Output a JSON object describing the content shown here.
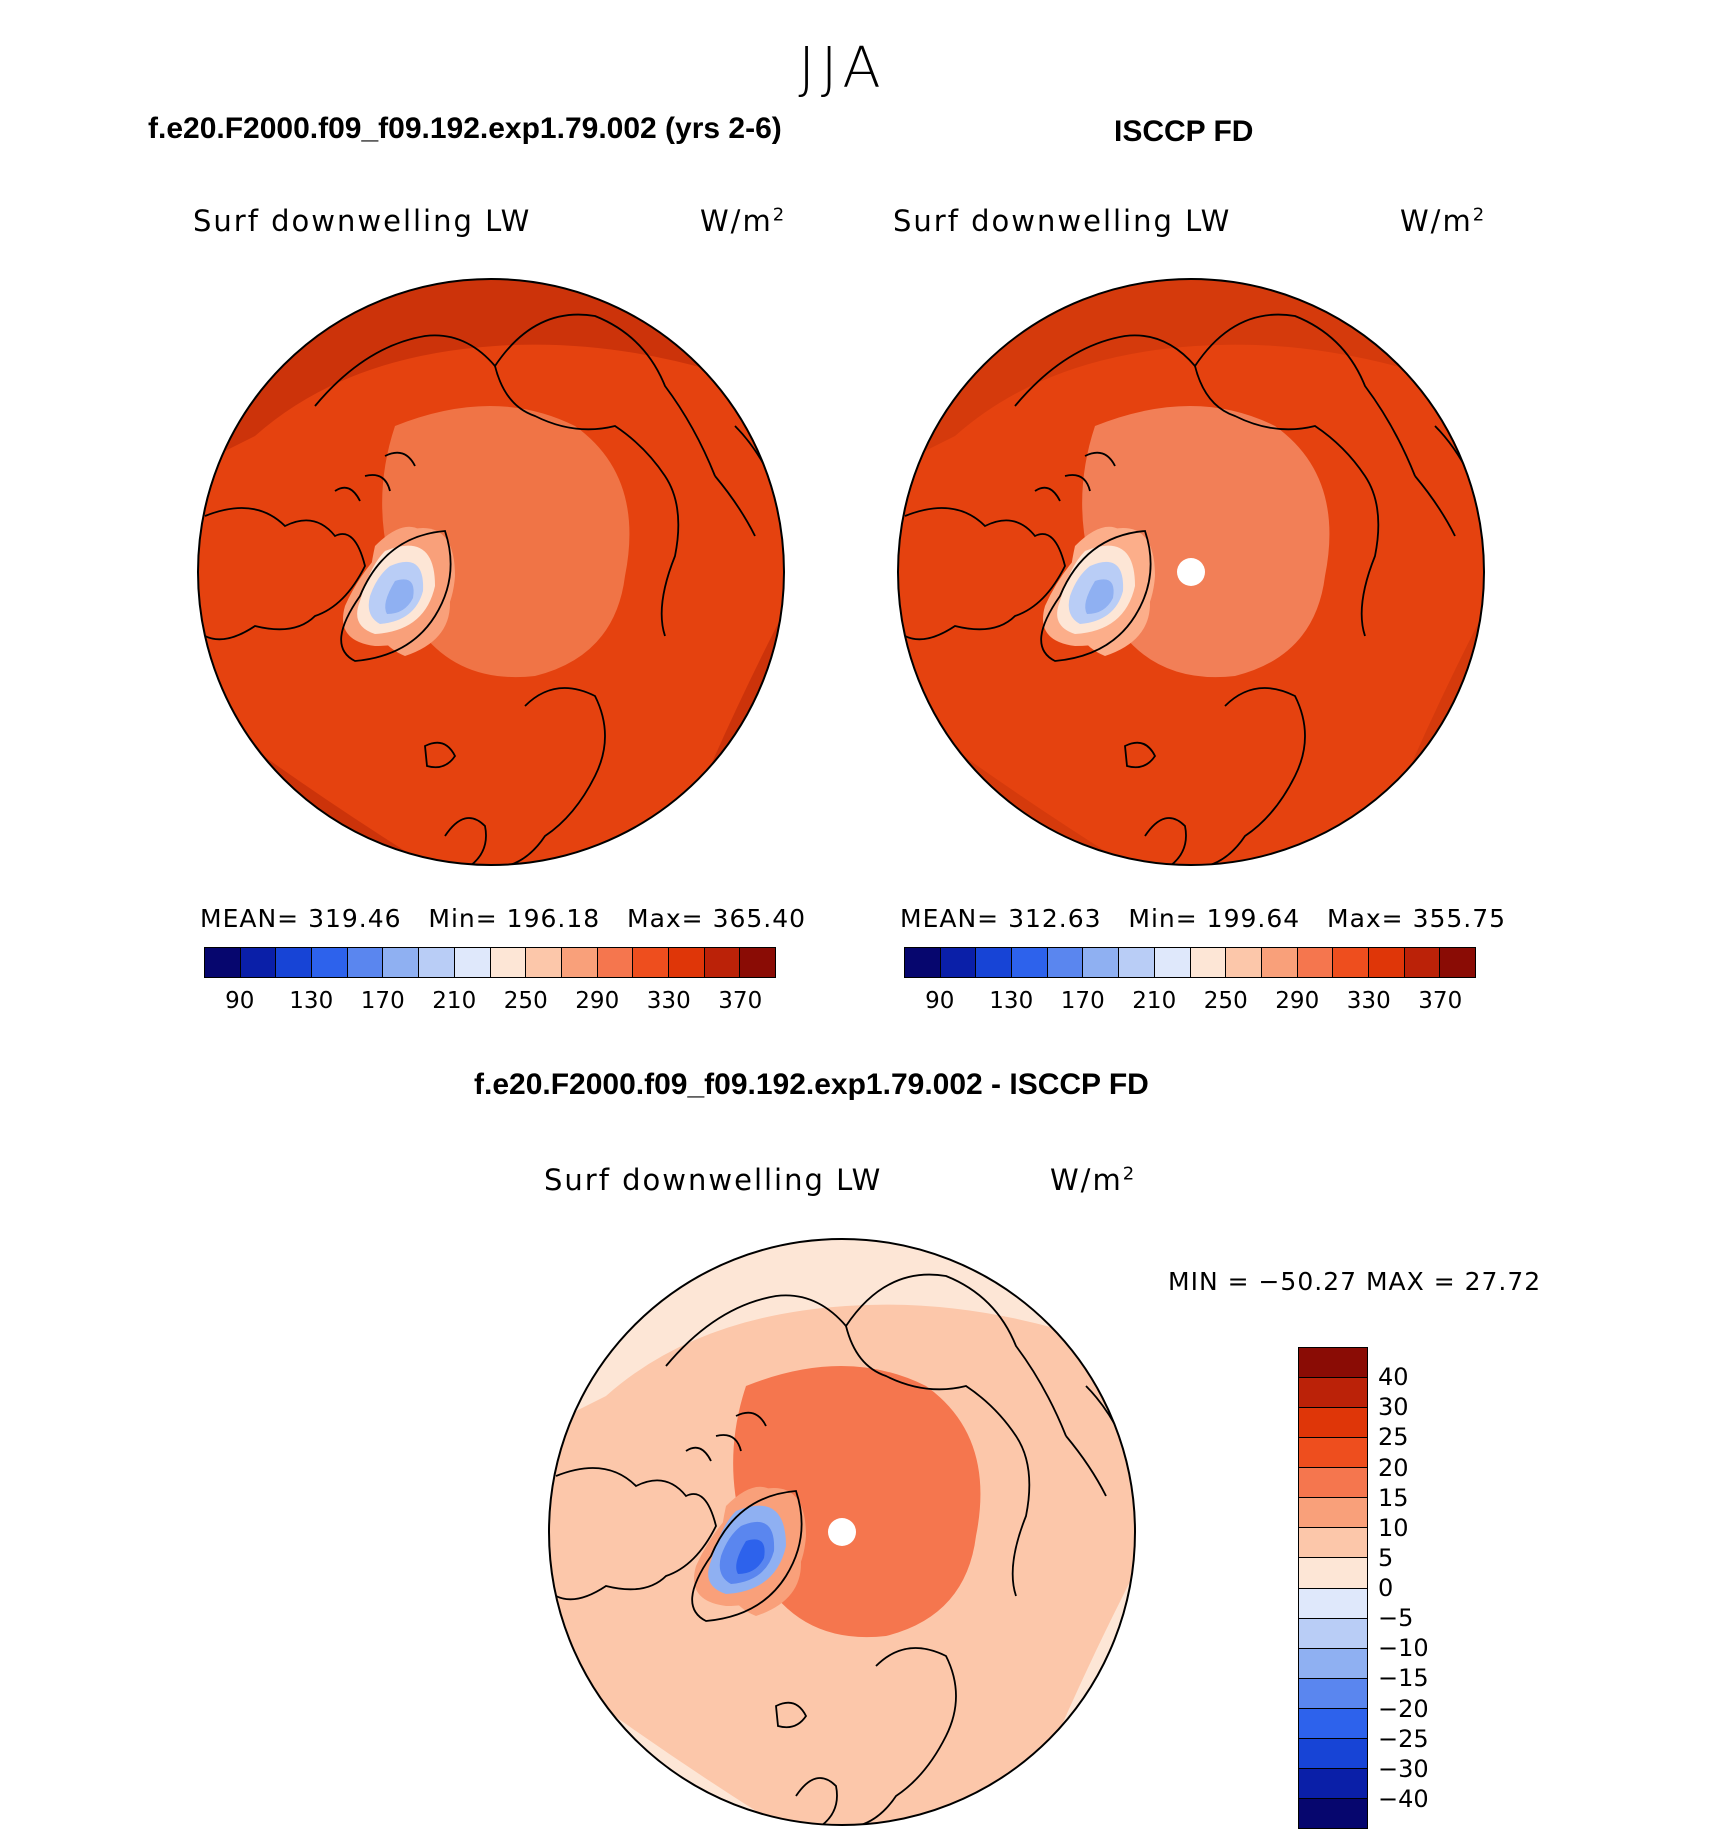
{
  "figure": {
    "season": "JJA"
  },
  "panels": {
    "model": {
      "title": "f.e20.F2000.f09_f09.192.exp1.79.002 (yrs 2-6)",
      "variable": "Surf downwelling LW",
      "units": "W/m",
      "units_sup": "2",
      "mean_label": "MEAN=",
      "mean": "319.46",
      "min_label": "Min=",
      "min": "196.18",
      "max_label": "Max=",
      "max": "365.40",
      "has_pole_hole": false
    },
    "obs": {
      "title": "ISCCP FD",
      "variable": "Surf downwelling LW",
      "units": "W/m",
      "units_sup": "2",
      "mean_label": "MEAN=",
      "mean": "312.63",
      "min_label": "Min=",
      "min": "199.64",
      "max_label": "Max=",
      "max": "355.75",
      "has_pole_hole": true
    },
    "diff": {
      "title": "f.e20.F2000.f09_f09.192.exp1.79.002 - ISCCP FD",
      "variable": "Surf downwelling LW",
      "units": "W/m",
      "units_sup": "2",
      "minmax_text": "MIN = −50.27 MAX =   27.72",
      "has_pole_hole": true
    }
  },
  "abs_colorbar": {
    "colors": [
      "#06066e",
      "#0a1fa8",
      "#1744d6",
      "#2d62ec",
      "#5a86ef",
      "#8fb0f2",
      "#b9cdf6",
      "#dfe8fb",
      "#fde6d6",
      "#fcc7aa",
      "#f9a07a",
      "#f5764e",
      "#ee4e1e",
      "#df3608",
      "#bb2208",
      "#8a0c05"
    ],
    "labels": [
      "90",
      "130",
      "170",
      "210",
      "250",
      "290",
      "330",
      "370"
    ]
  },
  "diff_colorbar": {
    "colors_top_to_bottom": [
      "#8a0c05",
      "#bb2208",
      "#df3608",
      "#ee4e1e",
      "#f5764e",
      "#f9a07a",
      "#fcc7aa",
      "#fde6d6",
      "#dfe8fb",
      "#b9cdf6",
      "#8fb0f2",
      "#5a86ef",
      "#2d62ec",
      "#1744d6",
      "#0a1fa8",
      "#06066e"
    ],
    "labels": [
      "40",
      "30",
      "25",
      "20",
      "15",
      "10",
      "5",
      "0",
      "−5",
      "−10",
      "−15",
      "−20",
      "−25",
      "−30",
      "−40"
    ]
  },
  "map_colors": {
    "model": {
      "bg": "#e5420f",
      "outer": "#cc330a",
      "ocean_cap": "#f07446",
      "rim": "#f9a07a",
      "ice1": "#fde6d6",
      "ice2": "#b9cdf6",
      "ice3": "#8fb0f2",
      "pole": "#f07446"
    },
    "obs": {
      "bg": "#e5420f",
      "outer": "#d53a0c",
      "ocean_cap": "#f27f57",
      "rim": "#fcae8a",
      "ice1": "#fde6d6",
      "ice2": "#b9cdf6",
      "ice3": "#8fb0f2",
      "pole": "#fcae8a"
    },
    "diff": {
      "bg": "#fcc7aa",
      "outer": "#fde6d6",
      "ocean_cap": "#f5764e",
      "rim": "#f9a07a",
      "ice1": "#8fb0f2",
      "ice2": "#5a86ef",
      "ice3": "#2d62ec",
      "pole": "#f5764e"
    }
  }
}
